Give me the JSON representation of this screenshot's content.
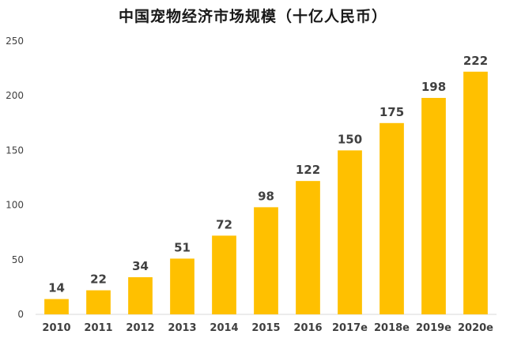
{
  "chart_data": {
    "type": "bar",
    "title": "中国宠物经济市场规模（十亿人民币）",
    "categories": [
      "2010",
      "2011",
      "2012",
      "2013",
      "2014",
      "2015",
      "2016",
      "2017e",
      "2018e",
      "2019e",
      "2020e"
    ],
    "values": [
      14,
      22,
      34,
      51,
      72,
      98,
      122,
      150,
      175,
      198,
      222
    ],
    "ylim": [
      0,
      250
    ],
    "yticks": [
      0,
      50,
      100,
      150,
      200,
      250
    ],
    "xlabel": "",
    "ylabel": "",
    "grid": false,
    "show_data_labels": true,
    "bar_color": "#FFC000",
    "axis_color": "#D9D9D9",
    "tick_label_color": "#404040",
    "data_label_color": "#404040"
  }
}
